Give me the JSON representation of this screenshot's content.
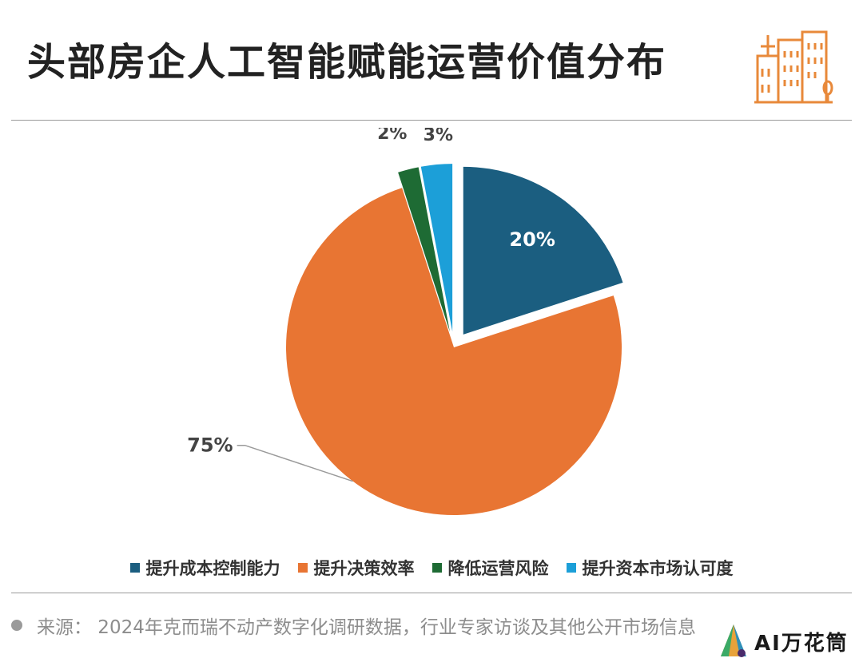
{
  "title": "头部房企人工智能赋能运营价值分布",
  "colors": {
    "accent": "#E8893A",
    "rule": "#9A9A9A"
  },
  "icons": {
    "header": "building-icon",
    "logo": "sail-logo-icon"
  },
  "chart_data": {
    "type": "pie",
    "slices": [
      {
        "label": "提升成本控制能力",
        "value": 20,
        "text": "20%",
        "color": "#1B5E80",
        "exploded": true
      },
      {
        "label": "提升决策效率",
        "value": 75,
        "text": "75%",
        "color": "#E87533",
        "exploded": false
      },
      {
        "label": "降低运营风险",
        "value": 2,
        "text": "2%",
        "color": "#1E6B34",
        "exploded": true
      },
      {
        "label": "提升资本市场认可度",
        "value": 3,
        "text": "3%",
        "color": "#1C9FD8",
        "exploded": true
      }
    ],
    "legend": [
      "提升成本控制能力",
      "提升决策效率",
      "降低运营风险",
      "提升资本市场认可度"
    ],
    "legend_position": "bottom"
  },
  "source": {
    "text": "来源： 2024年克而瑞不动产数字化调研数据，行业专家访谈及其他公开市场信息"
  },
  "logo": {
    "text": "AI万花筒"
  }
}
